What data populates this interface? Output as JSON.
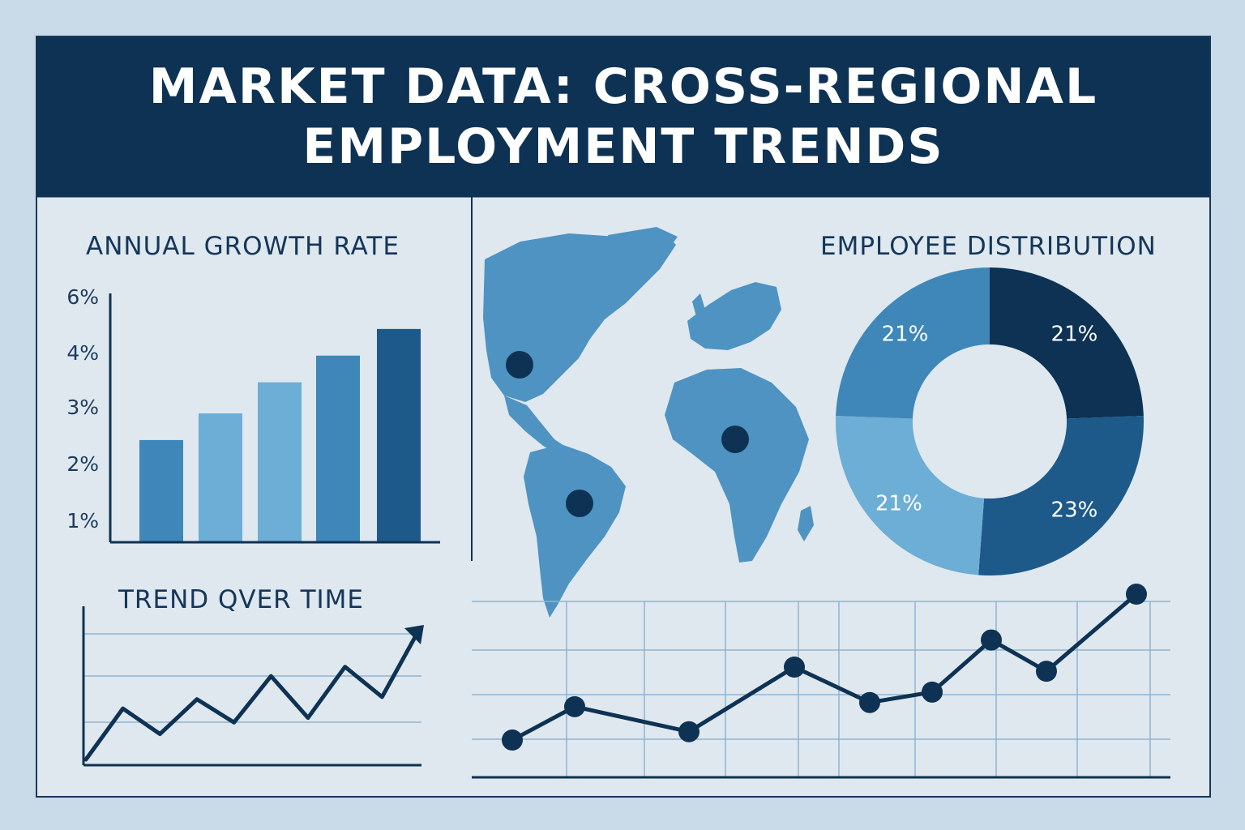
{
  "banner": {
    "line1": "MARKET DATA: CROSS-REGIONAL",
    "line2": "EMPLOYMENT TRENDS"
  },
  "colors": {
    "navy": "#0e3253",
    "dark_blue": "#1d5a8a",
    "mid_blue": "#3f87b8",
    "light_blue": "#6caed6",
    "map_blue": "#4e93c2",
    "panel_bg": "#dfe8ef",
    "page_bg": "#c9dbe9"
  },
  "chart_data": [
    {
      "id": "annual-growth",
      "type": "bar",
      "title": "ANNUAL GROWTH RATE",
      "yticks": [
        "6%",
        "4%",
        "3%",
        "2%",
        "1%"
      ],
      "categories": [
        "",
        "",
        "",
        "",
        ""
      ],
      "values": [
        2.3,
        2.9,
        3.6,
        4.2,
        4.8
      ],
      "ylim": [
        0,
        5.6
      ],
      "grid": false
    },
    {
      "id": "trend-over-time",
      "type": "line",
      "title": "TREND QVER TIME",
      "values": [
        0,
        2.2,
        1.1,
        2.6,
        1.6,
        3.6,
        1.8,
        4.0,
        2.7,
        5.6
      ],
      "arrow": true,
      "grid": true
    },
    {
      "id": "employee-distribution",
      "type": "pie",
      "title": "EMPLOYEE DISTRIBUTION",
      "donut": true,
      "slices": [
        {
          "label": "21%",
          "value": 21,
          "color": "#0e3253"
        },
        {
          "label": "23%",
          "value": 23,
          "color": "#1d5a8a"
        },
        {
          "label": "21%",
          "value": 21,
          "color": "#6caed6"
        },
        {
          "label": "21%",
          "value": 21,
          "color": "#3f87b8"
        }
      ]
    },
    {
      "id": "regional-trend",
      "type": "line",
      "title": "",
      "values": [
        1.0,
        2.6,
        1.4,
        4.5,
        2.8,
        3.3,
        5.8,
        4.3,
        8.0
      ],
      "markers": true,
      "grid": true
    }
  ],
  "map": {
    "markers": [
      "north-america",
      "africa",
      "south-america"
    ]
  }
}
